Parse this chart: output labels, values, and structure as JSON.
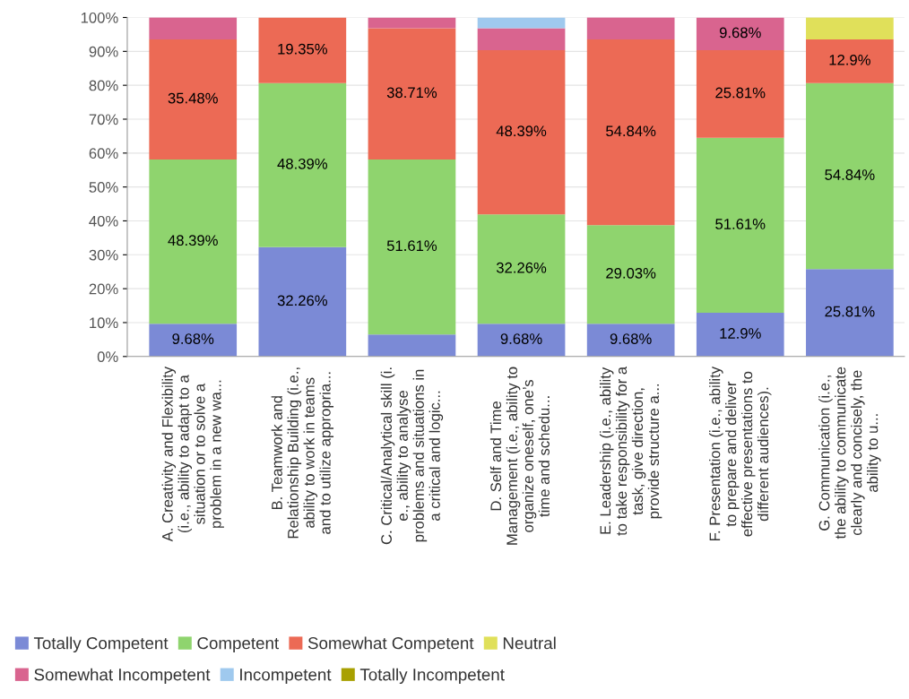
{
  "chart_data": {
    "type": "bar",
    "stacked": true,
    "categories": [
      "A. Creativity and Flexibility\n(i.e., ability to adapt to a\nsituation or to solve a\nproblem in a new wa...",
      "B. Teamwork and\nRelationship Building (i.e.,\nability to work in teams\nand to utilize appropria...",
      "C. Critical/Analytical skill (i.\ne., ability to analyse\nproblems and situations in\na critical and logic...",
      "D. Self and Time\nManagement (i.e., ability to\norganize oneself, one’s\ntime and schedu...",
      "E. Leadership (i.e., ability\nto take responsibility for a\ntask, give direction,\nprovide structure a...",
      "F. Presentation (i.e., ability\nto prepare and deliver\neffective presentations to\ndifferent audiences).",
      "G. Communication (i.e.,\nthe ability to communicate\nclearly and concisely, the\nability to u..."
    ],
    "series": [
      {
        "name": "Totally Competent",
        "color": "#7b8ad6",
        "values": [
          9.68,
          32.26,
          6.5,
          9.68,
          9.68,
          12.9,
          25.81
        ],
        "value_labels": [
          "9.68%",
          "32.26%",
          null,
          "9.68%",
          "9.68%",
          "12.9%",
          "25.81%"
        ]
      },
      {
        "name": "Competent",
        "color": "#8fd46e",
        "values": [
          48.39,
          48.39,
          51.61,
          32.26,
          29.03,
          51.61,
          54.84
        ],
        "value_labels": [
          "48.39%",
          "48.39%",
          "51.61%",
          "32.26%",
          "29.03%",
          "51.61%",
          "54.84%"
        ]
      },
      {
        "name": "Somewhat Competent",
        "color": "#ec6a55",
        "values": [
          35.48,
          19.35,
          38.71,
          48.39,
          54.84,
          25.81,
          12.9
        ],
        "value_labels": [
          "35.48%",
          "19.35%",
          "38.71%",
          "48.39%",
          "54.84%",
          "25.81%",
          "12.9%"
        ]
      },
      {
        "name": "Neutral",
        "color": "#e0e05a",
        "values": [
          0,
          0,
          0,
          0,
          0,
          0,
          6.5
        ],
        "value_labels": [
          null,
          null,
          null,
          null,
          null,
          null,
          null
        ]
      },
      {
        "name": "Somewhat Incompetent",
        "color": "#d9648f",
        "values": [
          6.5,
          0,
          3.2,
          6.5,
          6.5,
          9.68,
          0
        ],
        "value_labels": [
          null,
          null,
          null,
          null,
          null,
          "9.68%",
          null
        ]
      },
      {
        "name": "Incompetent",
        "color": "#9fc9ee",
        "values": [
          0,
          0,
          0,
          3.2,
          0,
          0,
          0
        ],
        "value_labels": [
          null,
          null,
          null,
          null,
          null,
          null,
          null
        ]
      },
      {
        "name": "Totally Incompetent",
        "color": "#a8a000",
        "values": [
          0,
          0,
          0,
          0,
          0,
          0,
          0
        ],
        "value_labels": [
          null,
          null,
          null,
          null,
          null,
          null,
          null
        ]
      }
    ],
    "ylim": [
      0,
      100
    ],
    "yticks": [
      {
        "value": 0,
        "label": "0%"
      },
      {
        "value": 10,
        "label": "10%"
      },
      {
        "value": 20,
        "label": "20%"
      },
      {
        "value": 30,
        "label": "30%"
      },
      {
        "value": 40,
        "label": "40%"
      },
      {
        "value": 50,
        "label": "50%"
      },
      {
        "value": 60,
        "label": "60%"
      },
      {
        "value": 70,
        "label": "70%"
      },
      {
        "value": 80,
        "label": "80%"
      },
      {
        "value": 90,
        "label": "90%"
      },
      {
        "value": 100,
        "label": "100%"
      }
    ],
    "grid": "y",
    "legend": "bottom"
  }
}
